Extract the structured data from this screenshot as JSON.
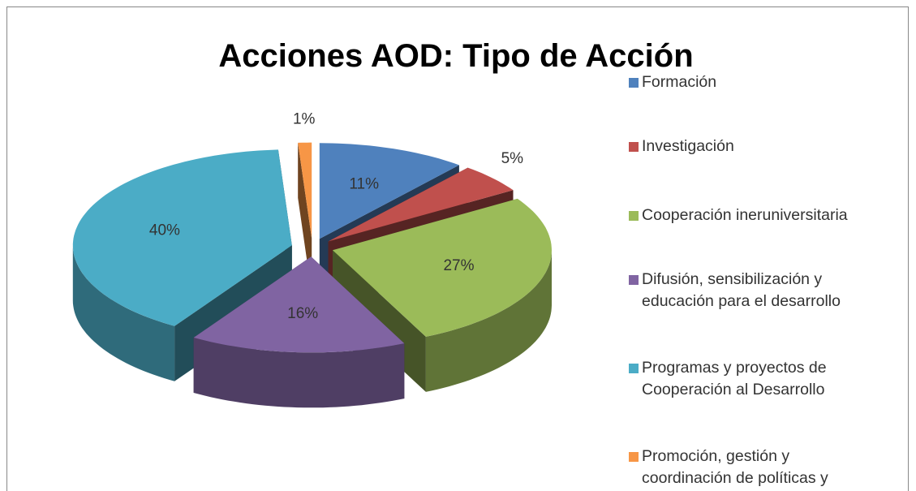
{
  "chart_data": {
    "type": "pie",
    "title": "Acciones AOD: Tipo de Acción",
    "categories": [
      "Formación",
      "Investigación",
      "Cooperación ineruniversitaria",
      "Difusión, sensibilización y educación para el desarrollo",
      "Programas y proyectos de Cooperación al Desarrollo",
      "Promoción, gestión y coordinación de políticas y programa…"
    ],
    "values": [
      11,
      5,
      27,
      16,
      40,
      1
    ],
    "value_labels": [
      "11%",
      "5%",
      "27%",
      "16%",
      "40%",
      "1%"
    ],
    "colors": [
      "#4f81bd",
      "#c0504d",
      "#9bbb59",
      "#8064a2",
      "#4bacc6",
      "#f79646"
    ],
    "legend": "right"
  }
}
